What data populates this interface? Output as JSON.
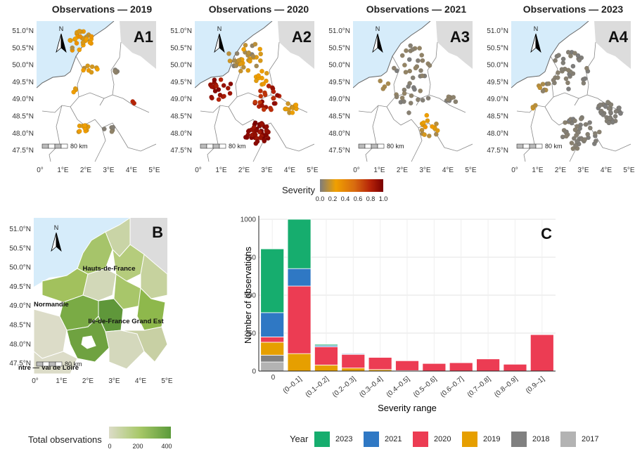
{
  "maps": [
    {
      "title": "Observations — 2019",
      "letter": "A1"
    },
    {
      "title": "Observations — 2020",
      "letter": "A2"
    },
    {
      "title": "Observations — 2021",
      "letter": "A3"
    },
    {
      "title": "Observations — 2023",
      "letter": "A4"
    }
  ],
  "map_axes": {
    "lat_ticks": [
      "51.0°N",
      "50.5°N",
      "50.0°N",
      "49.5°N",
      "49.0°N",
      "48.5°N",
      "48.0°N",
      "47.5°N"
    ],
    "lon_ticks": [
      "0°",
      "1°E",
      "2°E",
      "3°E",
      "4°E",
      "5°E"
    ],
    "scalebar": "80 km",
    "north": "N"
  },
  "severity_legend": {
    "title": "Severity",
    "ticks": [
      "0.0",
      "0.2",
      "0.4",
      "0.6",
      "0.8",
      "1.0"
    ]
  },
  "panel_b": {
    "letter": "B",
    "regions": [
      "Hauts-de-France",
      "Normandie",
      "Ile-de-France",
      "Grand Est",
      "ntre — Val de Loire"
    ],
    "legend_title": "Total observations",
    "legend_ticks": [
      "0",
      "200",
      "400"
    ]
  },
  "chart_data": {
    "type": "bar",
    "letter": "C",
    "stacked": true,
    "xlabel": "Severity range",
    "ylabel": "Number of observations",
    "ylim": [
      0,
      1000
    ],
    "yticks": [
      0,
      250,
      500,
      750,
      1000
    ],
    "categories": [
      "0",
      "(0–0.1]",
      "(0.1–0.2]",
      "(0.2–0.3]",
      "(0.3–0.4]",
      "(0.4–0.5]",
      "(0.5–0.6]",
      "(0.6–0.7]",
      "(0.7–0.8]",
      "(0.8–0.9]",
      "(0.9–1]"
    ],
    "series": [
      {
        "name": "2017",
        "color": "#b3b3b3",
        "values": [
          60,
          0,
          0,
          0,
          0,
          0,
          0,
          0,
          0,
          0,
          0
        ]
      },
      {
        "name": "2018",
        "color": "#808080",
        "values": [
          45,
          0,
          0,
          0,
          0,
          0,
          0,
          0,
          0,
          0,
          0
        ]
      },
      {
        "name": "2019",
        "color": "#e69f00",
        "values": [
          85,
          115,
          40,
          20,
          10,
          3,
          0,
          0,
          0,
          0,
          0
        ]
      },
      {
        "name": "2020",
        "color": "#ec3c53",
        "values": [
          35,
          445,
          120,
          90,
          80,
          65,
          50,
          55,
          80,
          45,
          240
        ]
      },
      {
        "name": "2021",
        "color": "#2f78c4",
        "values": [
          160,
          115,
          8,
          5,
          0,
          0,
          0,
          0,
          0,
          0,
          0
        ]
      },
      {
        "name": "2023",
        "color": "#16ad6e",
        "values": [
          420,
          340,
          8,
          3,
          0,
          0,
          0,
          0,
          0,
          0,
          0
        ]
      }
    ],
    "legend_title": "Year",
    "legend_order": [
      "2023",
      "2021",
      "2020",
      "2019",
      "2018",
      "2017"
    ]
  }
}
